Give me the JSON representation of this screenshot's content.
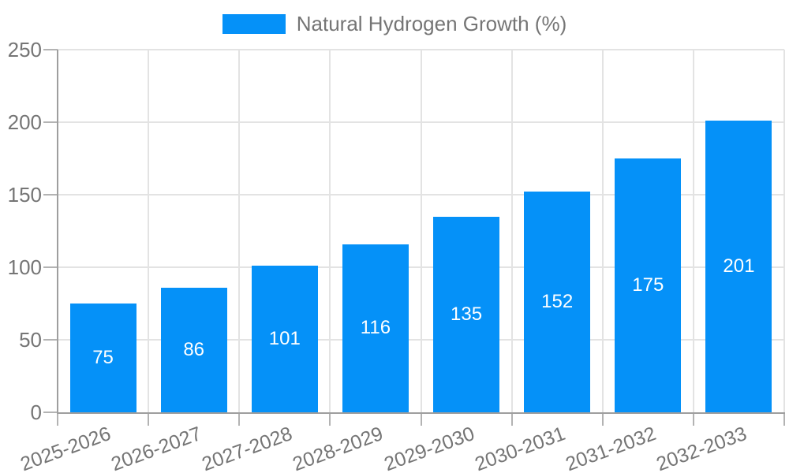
{
  "legend": {
    "label": "Natural Hydrogen Growth (%)",
    "position": "top"
  },
  "chart_data": {
    "type": "bar",
    "title": "",
    "series_name": "Natural Hydrogen Growth (%)",
    "categories": [
      "2025-2026",
      "2026-2027",
      "2027-2028",
      "2028-2029",
      "2029-2030",
      "2030-2031",
      "2031-2032",
      "2032-2033"
    ],
    "values": [
      75,
      86,
      101,
      116,
      135,
      152,
      175,
      201
    ],
    "xlabel": "",
    "ylabel": "",
    "ylim": [
      0,
      250
    ],
    "yticks": [
      0,
      50,
      100,
      150,
      200,
      250
    ],
    "grid": true,
    "legend_position": "top",
    "x_label_rotation": -20,
    "bar_color": "#0591f8",
    "value_label_color": "#ffffff",
    "axis_text_color": "#757575",
    "grid_color": "#e3e3e3",
    "axis_line_color": "#9e9e9e",
    "tick_color": "#b3b3b3",
    "background_color": "#ffffff"
  }
}
